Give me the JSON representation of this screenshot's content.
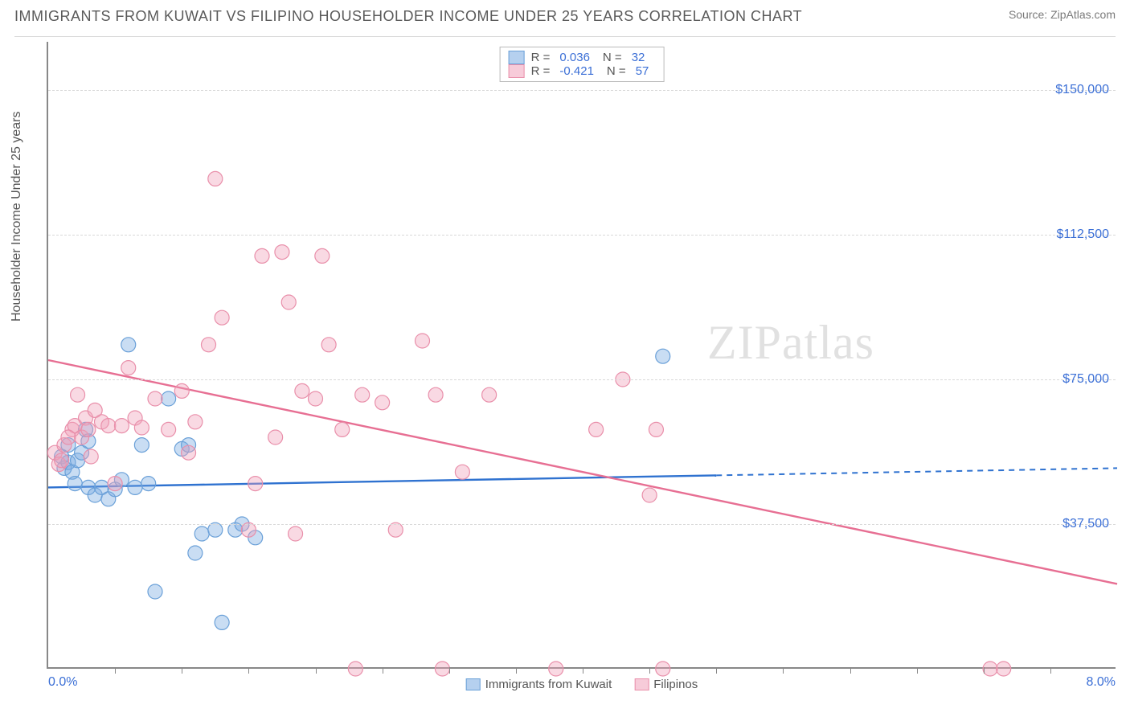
{
  "title": "IMMIGRANTS FROM KUWAIT VS FILIPINO HOUSEHOLDER INCOME UNDER 25 YEARS CORRELATION CHART",
  "source": "Source: ZipAtlas.com",
  "watermark": "ZIPatlas",
  "ylabel": "Householder Income Under 25 years",
  "chart": {
    "type": "scatter-correlation",
    "xlim": [
      0.0,
      8.0
    ],
    "ylim": [
      0,
      162500
    ],
    "background": "#ffffff",
    "grid_color": "#d9d9d9",
    "axis_color": "#888888",
    "yticks": [
      {
        "v": 37500,
        "label": "$37,500"
      },
      {
        "v": 75000,
        "label": "$75,000"
      },
      {
        "v": 112500,
        "label": "$112,500"
      },
      {
        "v": 150000,
        "label": "$150,000"
      }
    ],
    "xticks_minor": [
      0.5,
      1.0,
      1.5,
      2.0,
      2.5,
      3.0,
      3.5,
      4.0,
      4.5,
      5.0,
      5.5,
      6.0,
      6.5,
      7.0,
      7.5
    ],
    "xaxis_min_label": "0.0%",
    "xaxis_max_label": "8.0%",
    "series": [
      {
        "key": "kuwait",
        "name": "Immigrants from Kuwait",
        "color_fill": "rgba(120,170,225,0.40)",
        "color_stroke": "#6aa0d8",
        "line_color": "#2f72d0",
        "marker_r": 9,
        "R": "0.036",
        "N": "32",
        "trend": {
          "y_at_xmin": 47000,
          "y_at_xmax": 52000,
          "solid_until_x": 5.0
        },
        "points": [
          [
            0.1,
            55000
          ],
          [
            0.12,
            52000
          ],
          [
            0.15,
            53500
          ],
          [
            0.15,
            58000
          ],
          [
            0.18,
            51000
          ],
          [
            0.2,
            48000
          ],
          [
            0.22,
            54000
          ],
          [
            0.25,
            56000
          ],
          [
            0.28,
            62000
          ],
          [
            0.3,
            59000
          ],
          [
            0.3,
            47000
          ],
          [
            0.35,
            45000
          ],
          [
            0.4,
            47000
          ],
          [
            0.45,
            44000
          ],
          [
            0.5,
            46500
          ],
          [
            0.55,
            49000
          ],
          [
            0.6,
            84000
          ],
          [
            0.65,
            47000
          ],
          [
            0.7,
            58000
          ],
          [
            0.75,
            48000
          ],
          [
            0.8,
            20000
          ],
          [
            0.9,
            70000
          ],
          [
            1.0,
            57000
          ],
          [
            1.05,
            58000
          ],
          [
            1.1,
            30000
          ],
          [
            1.15,
            35000
          ],
          [
            1.25,
            36000
          ],
          [
            1.3,
            12000
          ],
          [
            1.4,
            36000
          ],
          [
            1.45,
            37500
          ],
          [
            1.55,
            34000
          ],
          [
            4.6,
            81000
          ]
        ]
      },
      {
        "key": "filipinos",
        "name": "Filipinos",
        "color_fill": "rgba(240,160,185,0.40)",
        "color_stroke": "#e98faa",
        "line_color": "#e76f93",
        "marker_r": 9,
        "R": "-0.421",
        "N": "57",
        "trend": {
          "y_at_xmin": 80000,
          "y_at_xmax": 22000,
          "solid_until_x": 8.0
        },
        "points": [
          [
            0.05,
            56000
          ],
          [
            0.08,
            53000
          ],
          [
            0.1,
            54000
          ],
          [
            0.12,
            58000
          ],
          [
            0.18,
            62000
          ],
          [
            0.2,
            63000
          ],
          [
            0.22,
            71000
          ],
          [
            0.25,
            60000
          ],
          [
            0.28,
            65000
          ],
          [
            0.3,
            62000
          ],
          [
            0.35,
            67000
          ],
          [
            0.4,
            64000
          ],
          [
            0.45,
            63000
          ],
          [
            0.5,
            48000
          ],
          [
            0.55,
            63000
          ],
          [
            0.6,
            78000
          ],
          [
            0.65,
            65000
          ],
          [
            0.7,
            62500
          ],
          [
            0.8,
            70000
          ],
          [
            0.9,
            62000
          ],
          [
            1.0,
            72000
          ],
          [
            1.05,
            56000
          ],
          [
            1.1,
            64000
          ],
          [
            1.2,
            84000
          ],
          [
            1.25,
            127000
          ],
          [
            1.3,
            91000
          ],
          [
            1.5,
            36000
          ],
          [
            1.55,
            48000
          ],
          [
            1.6,
            107000
          ],
          [
            1.7,
            60000
          ],
          [
            1.75,
            108000
          ],
          [
            1.8,
            95000
          ],
          [
            1.85,
            35000
          ],
          [
            1.9,
            72000
          ],
          [
            2.0,
            70000
          ],
          [
            2.05,
            107000
          ],
          [
            2.1,
            84000
          ],
          [
            2.2,
            62000
          ],
          [
            2.3,
            0
          ],
          [
            2.35,
            71000
          ],
          [
            2.5,
            69000
          ],
          [
            2.6,
            36000
          ],
          [
            2.8,
            85000
          ],
          [
            2.9,
            71000
          ],
          [
            2.95,
            0
          ],
          [
            3.1,
            51000
          ],
          [
            3.3,
            71000
          ],
          [
            3.8,
            0
          ],
          [
            4.1,
            62000
          ],
          [
            4.3,
            75000
          ],
          [
            4.5,
            45000
          ],
          [
            4.55,
            62000
          ],
          [
            4.6,
            0
          ],
          [
            7.05,
            0
          ],
          [
            7.15,
            0
          ],
          [
            0.15,
            60000
          ],
          [
            0.32,
            55000
          ]
        ]
      }
    ],
    "legend_swatch": {
      "kuwait": {
        "fill": "rgba(120,170,225,0.55)",
        "stroke": "#6aa0d8"
      },
      "filipinos": {
        "fill": "rgba(240,160,185,0.55)",
        "stroke": "#e98faa"
      }
    }
  }
}
